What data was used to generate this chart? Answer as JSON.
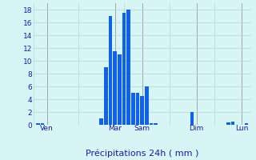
{
  "title": "",
  "xlabel": "Précipitations 24h ( mm )",
  "background_color": "#d8f5f5",
  "grid_color": "#b0d8d8",
  "bar_color": "#1060ee",
  "xlim": [
    0,
    48
  ],
  "ylim": [
    0,
    19
  ],
  "yticks": [
    0,
    2,
    4,
    6,
    8,
    10,
    12,
    14,
    16,
    18
  ],
  "day_labels": [
    "Ven",
    "Mar",
    "Sam",
    "Dim",
    "Lun"
  ],
  "day_positions": [
    3,
    18,
    24,
    36,
    46
  ],
  "bar_positions": [
    1,
    2,
    15,
    16,
    17,
    18,
    19,
    20,
    21,
    22,
    23,
    24,
    25,
    26,
    27,
    35,
    43,
    44,
    47
  ],
  "bar_heights": [
    0.2,
    0.3,
    1.0,
    9.0,
    17.0,
    11.5,
    11.0,
    17.5,
    18.0,
    5.0,
    5.0,
    4.5,
    6.0,
    0.3,
    0.3,
    2.0,
    0.4,
    0.5,
    0.3
  ],
  "bar_width": 0.85,
  "xlabel_fontsize": 8,
  "tick_fontsize": 6.5,
  "day_label_fontsize": 6.5,
  "tick_color": "#1a1aaa",
  "label_color": "#1a1aaa",
  "vline_color": "#999999"
}
